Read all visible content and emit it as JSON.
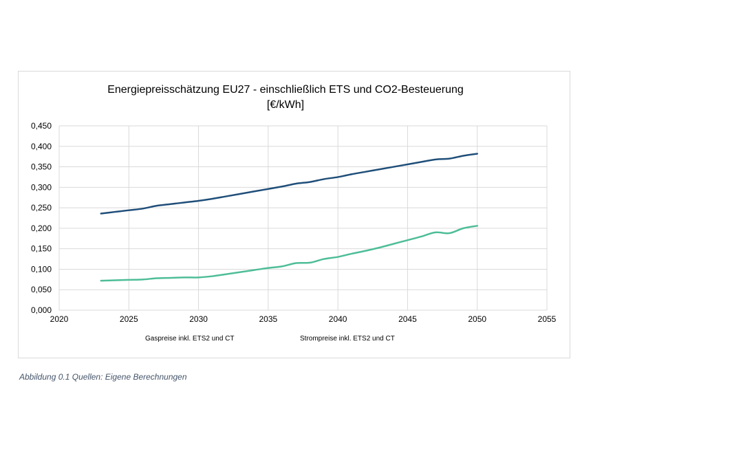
{
  "caption": "Abbildung 0.1 Quellen: Eigene Berechnungen",
  "chart_data": {
    "type": "line",
    "title": "Energiepreisschätzung EU27 - einschließlich ETS und CO2-Besteuerung",
    "subtitle": "[€/kWh]",
    "xlabel": "",
    "ylabel": "",
    "xlim": [
      2020,
      2055
    ],
    "ylim": [
      0,
      0.45
    ],
    "x_ticks": [
      "2020",
      "2025",
      "2030",
      "2035",
      "2040",
      "2045",
      "2050",
      "2055"
    ],
    "y_ticks": [
      "0,000",
      "0,050",
      "0,100",
      "0,150",
      "0,200",
      "0,250",
      "0,300",
      "0,350",
      "0,400",
      "0,450"
    ],
    "grid": true,
    "legend_position": "bottom",
    "x": [
      2023,
      2024,
      2025,
      2026,
      2027,
      2028,
      2029,
      2030,
      2031,
      2032,
      2033,
      2034,
      2035,
      2036,
      2037,
      2038,
      2039,
      2040,
      2041,
      2042,
      2043,
      2044,
      2045,
      2046,
      2047,
      2048,
      2049,
      2050
    ],
    "series": [
      {
        "name": "Gaspreise inkl. ETS2 und CT",
        "color": "#1f4e79",
        "values": [
          0.236,
          0.24,
          0.244,
          0.248,
          0.255,
          0.259,
          0.263,
          0.267,
          0.272,
          0.278,
          0.284,
          0.29,
          0.296,
          0.302,
          0.309,
          0.313,
          0.32,
          0.325,
          0.332,
          0.338,
          0.344,
          0.35,
          0.356,
          0.362,
          0.368,
          0.37,
          0.377,
          0.382
        ]
      },
      {
        "name": "Strompreise inkl. ETS2 und CT",
        "color": "#4dbd98",
        "values": [
          0.072,
          0.073,
          0.074,
          0.075,
          0.078,
          0.079,
          0.08,
          0.08,
          0.083,
          0.088,
          0.093,
          0.098,
          0.103,
          0.107,
          0.115,
          0.116,
          0.125,
          0.13,
          0.138,
          0.145,
          0.153,
          0.162,
          0.171,
          0.18,
          0.19,
          0.188,
          0.2,
          0.206
        ]
      }
    ]
  }
}
